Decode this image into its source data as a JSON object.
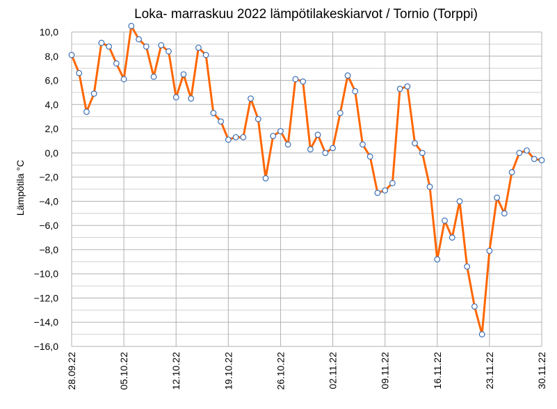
{
  "chart_data": {
    "type": "line",
    "title": "Loka- marraskuu 2022  lämpötilakeskiarvot  / Tornio (Torppi)",
    "ylabel": "Lämpötila  °C",
    "xlabel": "",
    "ylim": [
      -16,
      10
    ],
    "ytick_step": 2,
    "y_tick_labels": [
      "−16,0",
      "−14,0",
      "−12,0",
      "−10,0",
      "−8,0",
      "−6,0",
      "−4,0",
      "−2,0",
      "0,0",
      "2,0",
      "4,0",
      "6,0",
      "8,0",
      "10,0"
    ],
    "x_tick_labels": [
      "28.09.22",
      "05.10.22",
      "12.10.22",
      "19.10.22",
      "26.10.22",
      "02.11.22",
      "09.11.22",
      "16.11.22",
      "23.11.22",
      "30.11.22"
    ],
    "x_tick_every_days": 7,
    "grid": true,
    "legend": "none",
    "colors": {
      "line": "#ff6600",
      "marker_fill": "#ffffff",
      "marker_edge": "#3a6db5",
      "major_grid": "#b0b0b0",
      "minor_grid": "#d0d0d0"
    },
    "series": [
      {
        "values": [
          8.1,
          6.6,
          3.4,
          4.9,
          9.1,
          8.8,
          7.4,
          6.1,
          10.5,
          9.4,
          8.8,
          6.3,
          8.9,
          8.4,
          4.6,
          6.5,
          4.5,
          8.7,
          8.1,
          3.3,
          2.6,
          1.1,
          1.3,
          1.3,
          4.5,
          2.8,
          -2.1,
          1.4,
          1.8,
          0.7,
          6.1,
          5.9,
          0.3,
          1.5,
          0.0,
          0.4,
          3.3,
          6.4,
          5.1,
          0.7,
          -0.3,
          -3.3,
          -3.1,
          -2.5,
          5.3,
          5.5,
          0.8,
          0.0,
          -2.8,
          -8.8,
          -5.6,
          -7.0,
          -4.0,
          -9.4,
          -12.7,
          -15.0,
          -8.1,
          -3.7,
          -5.0,
          -1.6,
          0.0,
          0.2,
          -0.5,
          -0.6
        ]
      }
    ]
  }
}
